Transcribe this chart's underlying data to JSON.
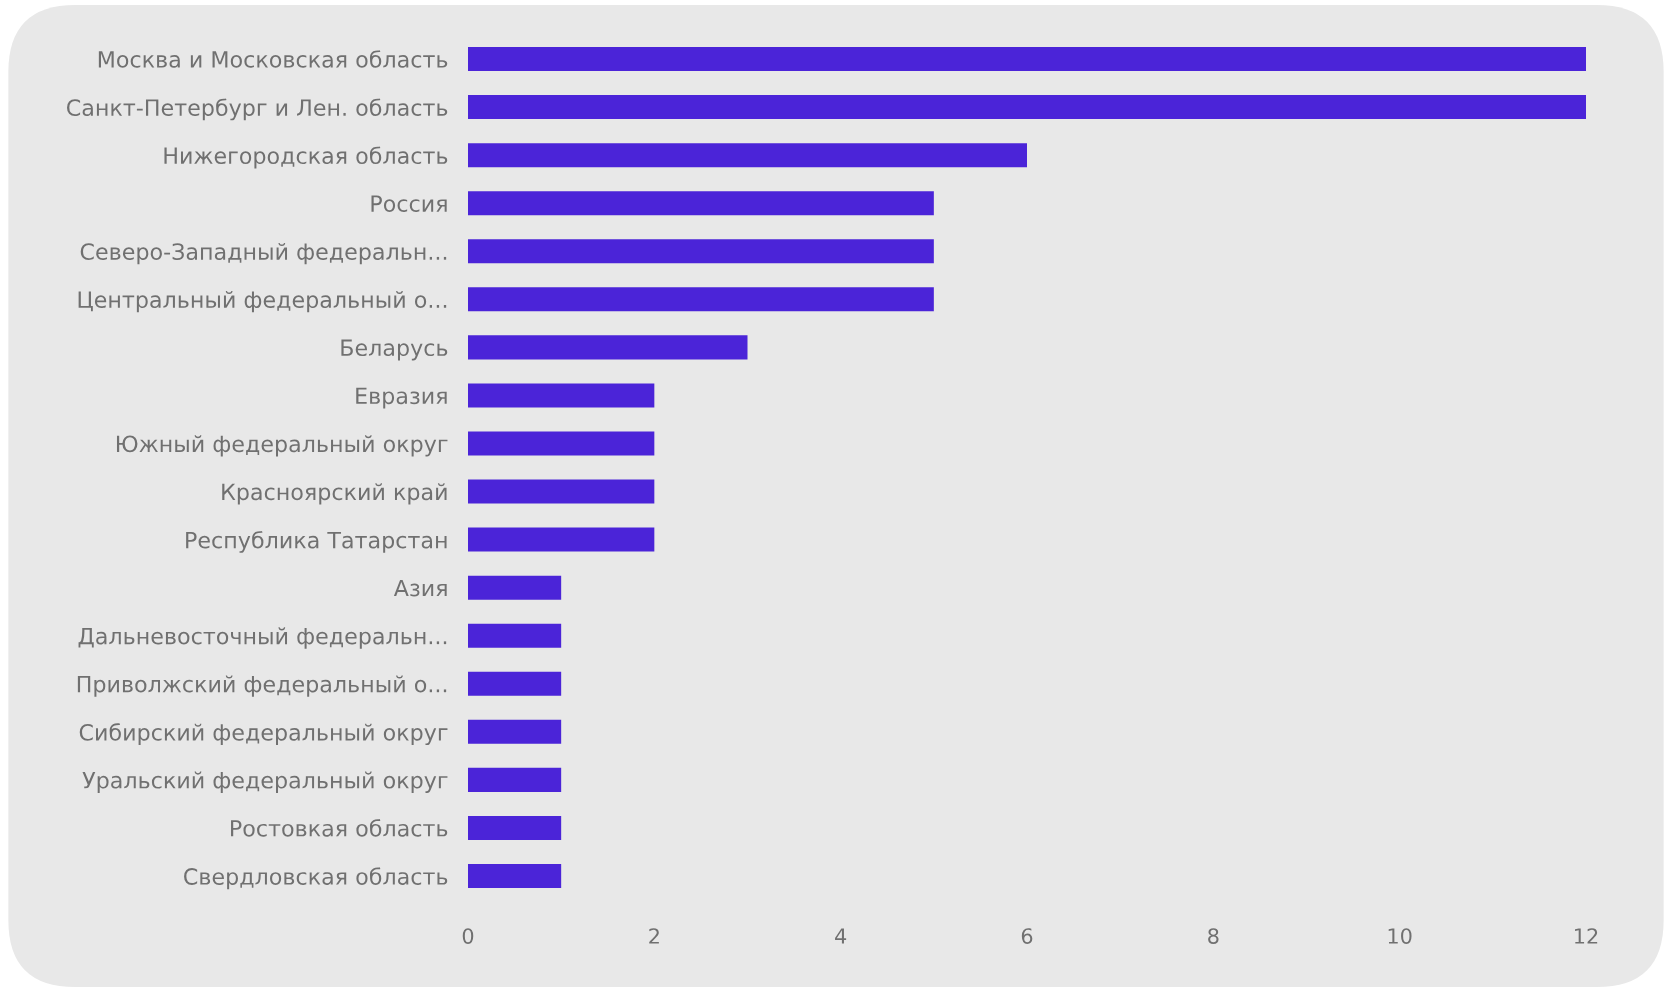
{
  "chart_data": {
    "type": "bar",
    "orientation": "horizontal",
    "categories": [
      "Москва и Московская область",
      "Санкт-Петербург и Лен. область",
      "Нижегородская область",
      "Россия",
      "Северо-Западный федеральн...",
      "Центральный федеральный о...",
      "Беларусь",
      "Евразия",
      "Южный федеральный округ",
      "Красноярский край",
      "Республика Татарстан",
      "Азия",
      "Дальневосточный федеральн...",
      "Приволжский федеральный о...",
      "Сибирский федеральный округ",
      "Уральский федеральный округ",
      "Ростовкая область",
      "Свердловская область"
    ],
    "values": [
      12,
      12,
      6,
      5,
      5,
      5,
      3,
      2,
      2,
      2,
      2,
      1,
      1,
      1,
      1,
      1,
      1,
      1
    ],
    "color": "#4b24d8",
    "xlim": [
      0,
      12
    ],
    "xticks": [
      0,
      2,
      4,
      6,
      8,
      10,
      12
    ],
    "grid": false,
    "legend": false
  }
}
